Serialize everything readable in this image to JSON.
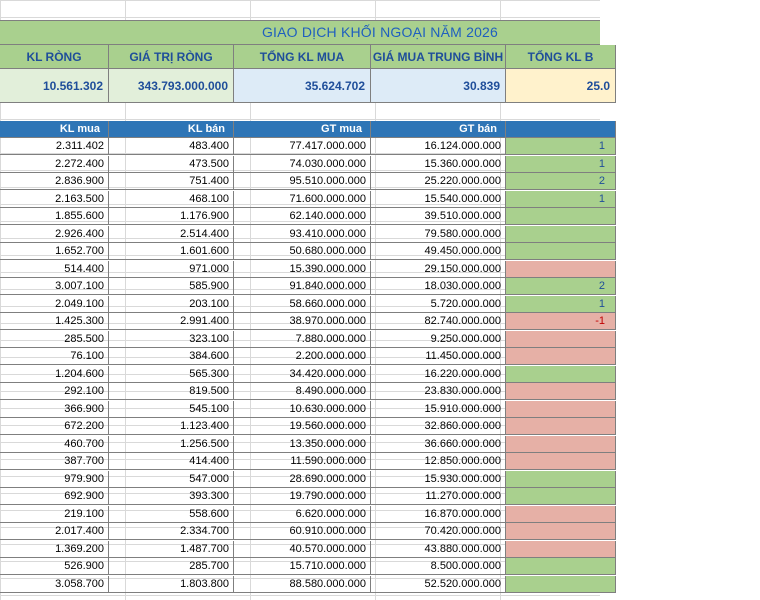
{
  "title": "GIAO DỊCH KHỐI NGOẠI NĂM 2026",
  "summary": {
    "headers": [
      "KL RÒNG",
      "GIÁ TRỊ RÒNG",
      "TỔNG KL MUA",
      "GIÁ MUA TRUNG BÌNH",
      "TỔNG KL B"
    ],
    "values": [
      "10.561.302",
      "343.793.000.000",
      "35.624.702",
      "30.839",
      "25.0"
    ],
    "colors": [
      "#e2efda",
      "#e2efda",
      "#ddebf7",
      "#ddebf7",
      "#fff2cc"
    ]
  },
  "table": {
    "headers": [
      "KL mua",
      "KL bán",
      "GT mua",
      "GT bán"
    ],
    "rows": [
      [
        "2.311.402",
        "483.400",
        "77.417.000.000",
        "16.124.000.000"
      ],
      [
        "2.272.400",
        "473.500",
        "74.030.000.000",
        "15.360.000.000"
      ],
      [
        "2.836.900",
        "751.400",
        "95.510.000.000",
        "25.220.000.000"
      ],
      [
        "2.163.500",
        "468.100",
        "71.600.000.000",
        "15.540.000.000"
      ],
      [
        "1.855.600",
        "1.176.900",
        "62.140.000.000",
        "39.510.000.000"
      ],
      [
        "2.926.400",
        "2.514.400",
        "93.410.000.000",
        "79.580.000.000"
      ],
      [
        "1.652.700",
        "1.601.600",
        "50.680.000.000",
        "49.450.000.000"
      ],
      [
        "514.400",
        "971.000",
        "15.390.000.000",
        "29.150.000.000"
      ],
      [
        "3.007.100",
        "585.900",
        "91.840.000.000",
        "18.030.000.000"
      ],
      [
        "2.049.100",
        "203.100",
        "58.660.000.000",
        "5.720.000.000"
      ],
      [
        "1.425.300",
        "2.991.400",
        "38.970.000.000",
        "82.740.000.000"
      ],
      [
        "285.500",
        "323.100",
        "7.880.000.000",
        "9.250.000.000"
      ],
      [
        "76.100",
        "384.600",
        "2.200.000.000",
        "11.450.000.000"
      ],
      [
        "1.204.600",
        "565.300",
        "34.420.000.000",
        "16.220.000.000"
      ],
      [
        "292.100",
        "819.500",
        "8.490.000.000",
        "23.830.000.000"
      ],
      [
        "366.900",
        "545.100",
        "10.630.000.000",
        "15.910.000.000"
      ],
      [
        "672.200",
        "1.123.400",
        "19.560.000.000",
        "32.860.000.000"
      ],
      [
        "460.700",
        "1.256.500",
        "13.350.000.000",
        "36.660.000.000"
      ],
      [
        "387.700",
        "414.400",
        "11.590.000.000",
        "12.850.000.000"
      ],
      [
        "979.900",
        "547.000",
        "28.690.000.000",
        "15.930.000.000"
      ],
      [
        "692.900",
        "393.300",
        "19.790.000.000",
        "11.270.000.000"
      ],
      [
        "219.100",
        "558.600",
        "6.620.000.000",
        "16.870.000.000"
      ],
      [
        "2.017.400",
        "2.334.700",
        "60.910.000.000",
        "70.420.000.000"
      ],
      [
        "1.369.200",
        "1.487.700",
        "40.570.000.000",
        "43.880.000.000"
      ],
      [
        "526.900",
        "285.700",
        "15.710.000.000",
        "8.500.000.000"
      ],
      [
        "3.058.700",
        "1.803.800",
        "88.580.000.000",
        "52.520.000.000"
      ]
    ],
    "net_column": {
      "positive_color": "#a9d08e",
      "negative_color": "#e6b0a6",
      "signs": [
        "+",
        "+",
        "+",
        "+",
        "+",
        "+",
        "+",
        "-",
        "+",
        "+",
        "-",
        "-",
        "-",
        "+",
        "-",
        "-",
        "-",
        "-",
        "-",
        "+",
        "+",
        "-",
        "-",
        "-",
        "+",
        "+"
      ],
      "visible_fragments": [
        "1",
        "1",
        "2",
        "1",
        "",
        "",
        "",
        "",
        "2",
        "1",
        "-1",
        "",
        "",
        "",
        "",
        "",
        "",
        "",
        "",
        "",
        "",
        "",
        "",
        "",
        "",
        ""
      ]
    }
  }
}
